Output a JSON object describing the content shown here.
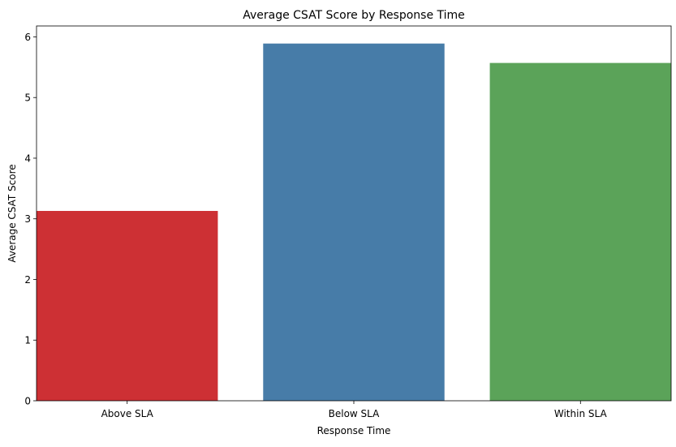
{
  "chart_data": {
    "type": "bar",
    "title": "Average CSAT Score by Response Time",
    "xlabel": "Response Time",
    "ylabel": "Average CSAT Score",
    "categories": [
      "Above SLA",
      "Below SLA",
      "Within SLA"
    ],
    "values": [
      3.13,
      5.89,
      5.57
    ],
    "colors": [
      "#cd3034",
      "#477ca8",
      "#5ba359"
    ],
    "ylim": [
      0,
      6.18
    ],
    "yticks": [
      0,
      1,
      2,
      3,
      4,
      5,
      6
    ],
    "grid": false,
    "legend": "none"
  }
}
